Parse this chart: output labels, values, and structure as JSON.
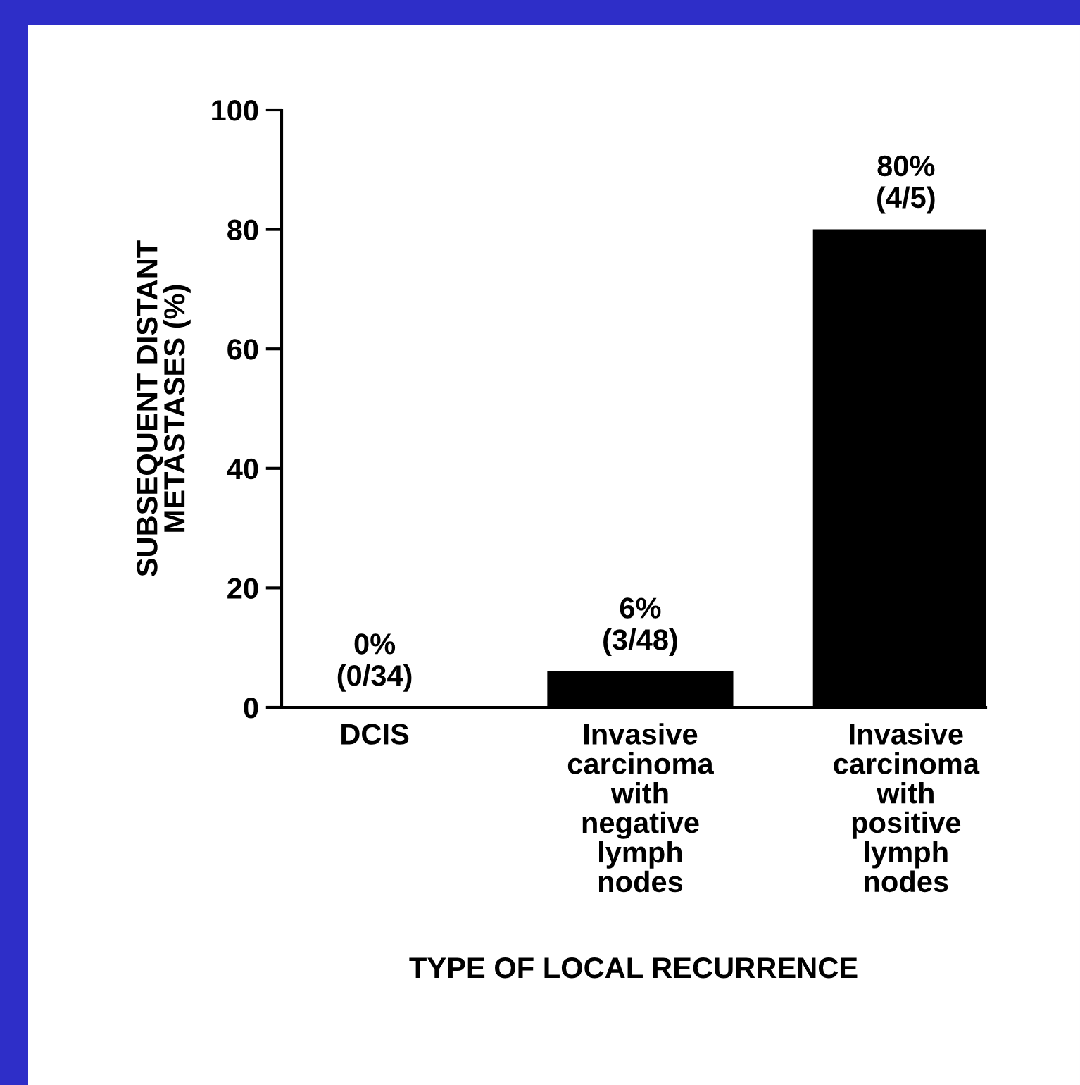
{
  "chart_data": {
    "type": "bar",
    "xlabel": "TYPE OF LOCAL RECURRENCE",
    "ylabel": "SUBSEQUENT DISTANT\nMETASTASES (%)",
    "categories": [
      "DCIS",
      "Invasive\ncarcinoma\nwith\nnegative\nlymph\nnodes",
      "Invasive\ncarcinoma\nwith\npositive\nlymph\nnodes"
    ],
    "values": [
      0,
      6,
      80
    ],
    "value_labels": [
      "0%\n(0/34)",
      "6%\n(3/48)",
      "80%\n(4/5)"
    ],
    "color": "#000000",
    "ylim": [
      0,
      100
    ],
    "yticks": [
      0,
      20,
      40,
      60,
      80,
      100
    ],
    "grid": false,
    "legend": false
  }
}
